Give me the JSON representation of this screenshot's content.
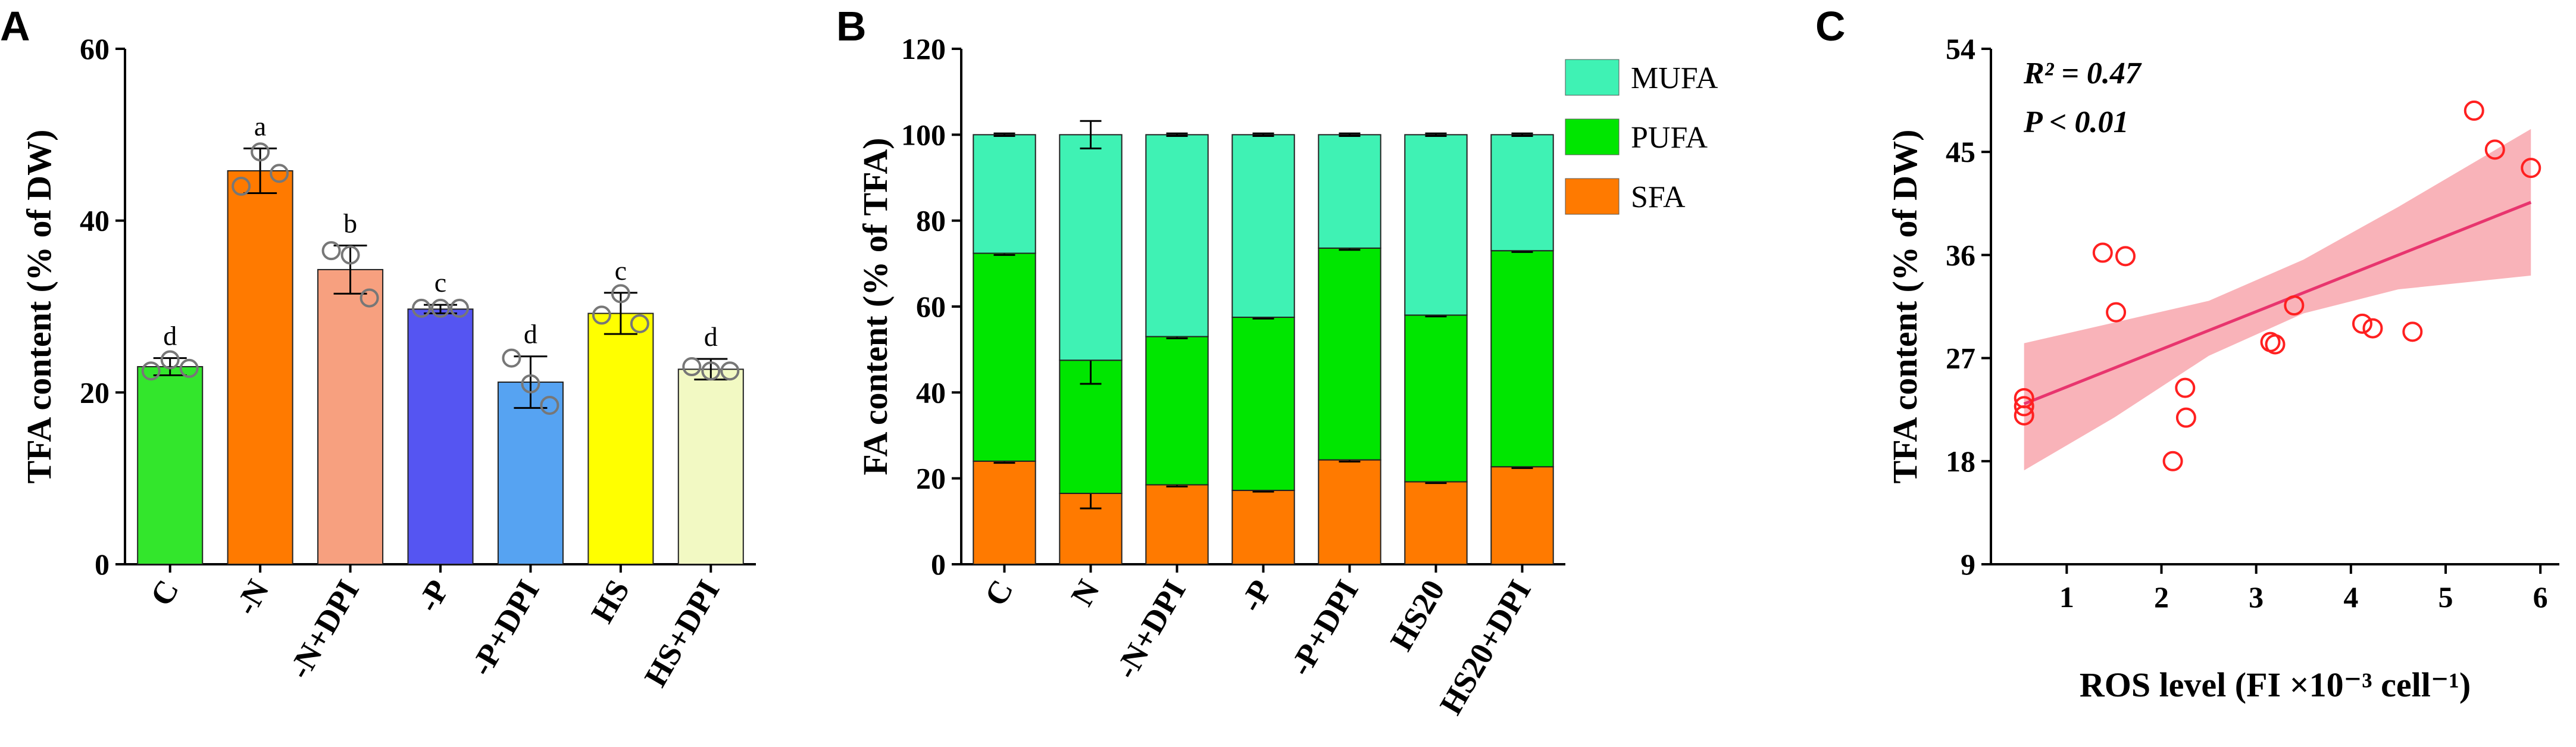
{
  "panels": {
    "A": {
      "letter": "A"
    },
    "B": {
      "letter": "B"
    },
    "C": {
      "letter": "C"
    }
  },
  "annotation": {
    "r2": "R² = 0.47",
    "p": "P < 0.01"
  },
  "chart_data": [
    {
      "type": "bar",
      "panel": "A",
      "ylabel": "TFA content  (% of DW)",
      "xlabel": "",
      "ylim": [
        0,
        60
      ],
      "yticks": [
        0,
        20,
        40,
        60
      ],
      "categories": [
        "C",
        "-N",
        "-N+DPI",
        "-P",
        "-P+DPI",
        "HS",
        "HS+DPI"
      ],
      "values": [
        23.0,
        45.8,
        34.3,
        29.7,
        21.2,
        29.2,
        22.7
      ],
      "errors": [
        1.0,
        2.6,
        2.8,
        0.5,
        3.0,
        2.4,
        1.2
      ],
      "letters": [
        "d",
        "a",
        "b",
        "c",
        "d",
        "c",
        "d"
      ],
      "points": [
        [
          22.5,
          23.8,
          22.8
        ],
        [
          44.0,
          48.0,
          45.5
        ],
        [
          36.5,
          36.0,
          31.0
        ],
        [
          29.8,
          29.8,
          29.8
        ],
        [
          24.0,
          21.0,
          18.5
        ],
        [
          29.0,
          31.5,
          28.0
        ],
        [
          23.0,
          22.5,
          22.5
        ]
      ],
      "colors": [
        "#33e62c",
        "#ff7a00",
        "#f7a07f",
        "#5555f2",
        "#56a3f2",
        "#ffff00",
        "#f2f9c3"
      ]
    },
    {
      "type": "bar",
      "stacked": true,
      "panel": "B",
      "ylabel": "FA content  (% of TFA)",
      "xlabel": "",
      "ylim": [
        0,
        120
      ],
      "yticks": [
        0,
        20,
        40,
        60,
        80,
        100,
        120
      ],
      "categories": [
        "C",
        "N",
        "-N+DPI",
        "-P",
        "-P+DPI",
        "HS20",
        "HS20+DPI"
      ],
      "series": [
        {
          "name": "SFA",
          "color": "#ff7a00",
          "values": [
            24.0,
            16.5,
            18.5,
            17.2,
            24.3,
            19.2,
            22.7
          ],
          "errors": [
            0.4,
            3.5,
            0.4,
            0.3,
            0.4,
            0.3,
            0.3
          ]
        },
        {
          "name": "PUFA",
          "color": "#00e600",
          "values": [
            48.4,
            31.0,
            34.5,
            40.3,
            49.3,
            38.8,
            50.3
          ],
          "errors": [
            0.4,
            5.5,
            0.4,
            0.3,
            0.4,
            0.3,
            0.3
          ]
        },
        {
          "name": "MUFA",
          "color": "#3ff2b4",
          "values": [
            27.6,
            52.5,
            47.0,
            42.5,
            26.4,
            42.0,
            27.0
          ],
          "errors": [
            0.3,
            3.2,
            0.3,
            0.3,
            0.3,
            0.3,
            0.3
          ]
        }
      ],
      "legend": [
        "MUFA",
        "PUFA",
        "SFA"
      ],
      "legend_position": "top-right"
    },
    {
      "type": "scatter",
      "panel": "C",
      "xlabel": "ROS level (FI ×10⁻³ cell⁻¹)",
      "ylabel": "TFA content (% of DW)",
      "xlim": [
        0.2,
        6.2
      ],
      "ylim": [
        9,
        54
      ],
      "xticks": [
        1,
        2,
        3,
        4,
        5,
        6
      ],
      "yticks": [
        9,
        18,
        27,
        36,
        45,
        54
      ],
      "points": [
        [
          0.55,
          23.5
        ],
        [
          0.55,
          22.8
        ],
        [
          0.55,
          22.0
        ],
        [
          1.38,
          36.2
        ],
        [
          1.62,
          35.9
        ],
        [
          1.52,
          31.0
        ],
        [
          2.12,
          18.0
        ],
        [
          2.25,
          24.4
        ],
        [
          2.26,
          21.8
        ],
        [
          3.15,
          28.4
        ],
        [
          3.2,
          28.2
        ],
        [
          3.4,
          31.6
        ],
        [
          4.12,
          30.0
        ],
        [
          4.23,
          29.6
        ],
        [
          4.65,
          29.3
        ],
        [
          5.3,
          48.6
        ],
        [
          5.52,
          45.2
        ],
        [
          5.9,
          43.6
        ]
      ],
      "fit": {
        "x": [
          0.55,
          5.9
        ],
        "y": [
          23.0,
          40.6
        ]
      },
      "ci_upper": [
        [
          0.55,
          28.3
        ],
        [
          1.5,
          30.1
        ],
        [
          2.5,
          32.0
        ],
        [
          3.5,
          35.6
        ],
        [
          4.5,
          40.2
        ],
        [
          5.9,
          47.0
        ]
      ],
      "ci_lower": [
        [
          0.55,
          17.2
        ],
        [
          1.5,
          21.8
        ],
        [
          2.5,
          27.2
        ],
        [
          3.5,
          30.9
        ],
        [
          4.5,
          33.0
        ],
        [
          5.9,
          34.2
        ]
      ],
      "point_color": "#ff2020",
      "line_color": "#e8356e",
      "band_color": "#f8a0a8"
    }
  ]
}
